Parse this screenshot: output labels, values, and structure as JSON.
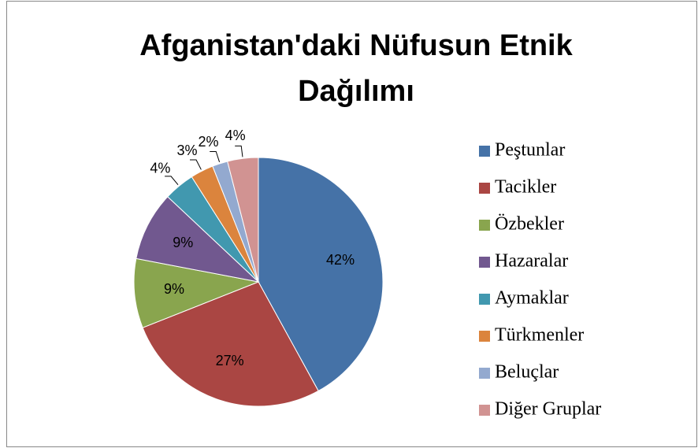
{
  "chart_data": {
    "type": "pie",
    "title": "Afganistan'daki Nüfusun Etnik Dağılımı",
    "categories": [
      "Peştunlar",
      "Tacikler",
      "Özbekler",
      "Hazaralar",
      "Aymaklar",
      "Türkmenler",
      "Beluçlar",
      "Diğer Gruplar"
    ],
    "values": [
      42,
      27,
      9,
      9,
      4,
      3,
      2,
      4
    ],
    "value_labels": [
      "42%",
      "27%",
      "9%",
      "9%",
      "4%",
      "3%",
      "2%",
      "4%"
    ],
    "colors": [
      "#4572a7",
      "#aa4643",
      "#89a54e",
      "#71588f",
      "#4198af",
      "#db843d",
      "#93a9cf",
      "#d19392"
    ],
    "legend": "right"
  }
}
